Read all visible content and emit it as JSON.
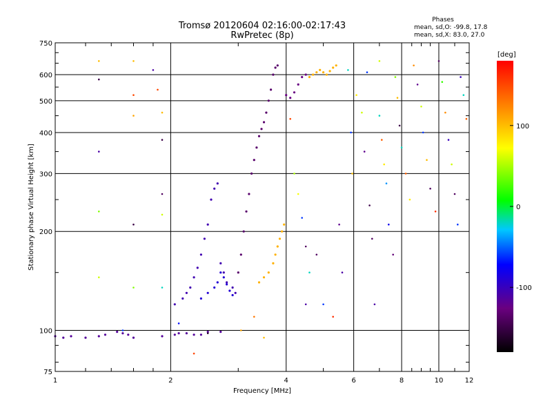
{
  "chart_data": {
    "type": "scatter",
    "title": "Tromsø 20120604 02:16:00-02:17:43",
    "subtitle": "RwPretec (8p)",
    "xlabel": "Frequency [MHz]",
    "ylabel": "Stationary phase Virtual Height [km]",
    "x_scale": "log",
    "y_scale": "log",
    "xlim": [
      1,
      12
    ],
    "ylim": [
      75,
      750
    ],
    "x_ticks": [
      "1",
      "2",
      "4",
      "6",
      "8",
      "10",
      "12"
    ],
    "y_ticks": [
      "75",
      "100",
      "200",
      "300",
      "400",
      "500",
      "600",
      "750"
    ],
    "grid": true,
    "phases": {
      "heading": "Phases",
      "line_o": "mean, sd,O: -99.8, 17.8",
      "line_x": "mean, sd,X:  83.0, 27.0"
    },
    "colorbar": {
      "label": "[deg]",
      "ticks": [
        "100",
        "0",
        "-100"
      ],
      "range": [
        -180,
        180
      ]
    },
    "series": [
      {
        "phase_deg": -115,
        "points": [
          [
            1.0,
            96
          ],
          [
            1.05,
            95
          ],
          [
            1.1,
            96
          ],
          [
            1.2,
            95
          ],
          [
            1.3,
            96
          ],
          [
            1.35,
            97
          ],
          [
            1.45,
            99
          ],
          [
            1.5,
            98
          ],
          [
            1.55,
            97
          ],
          [
            1.6,
            95
          ],
          [
            1.9,
            96
          ],
          [
            2.05,
            97
          ],
          [
            2.1,
            98
          ],
          [
            2.2,
            98
          ],
          [
            2.3,
            97
          ],
          [
            2.4,
            97
          ],
          [
            2.5,
            99
          ],
          [
            2.7,
            99
          ]
        ]
      },
      {
        "phase_deg": -105,
        "points": [
          [
            2.05,
            120
          ],
          [
            2.15,
            125
          ],
          [
            2.2,
            130
          ],
          [
            2.25,
            135
          ],
          [
            2.3,
            145
          ],
          [
            2.35,
            155
          ],
          [
            2.4,
            170
          ],
          [
            2.45,
            190
          ],
          [
            2.5,
            210
          ],
          [
            2.55,
            250
          ],
          [
            2.6,
            270
          ],
          [
            2.65,
            280
          ],
          [
            2.7,
            160
          ],
          [
            2.75,
            150
          ],
          [
            2.8,
            140
          ],
          [
            2.9,
            135
          ],
          [
            2.95,
            130
          ]
        ]
      },
      {
        "phase_deg": -90,
        "points": [
          [
            2.4,
            125
          ],
          [
            2.5,
            130
          ],
          [
            2.6,
            135
          ],
          [
            2.65,
            140
          ],
          [
            2.7,
            150
          ],
          [
            2.75,
            145
          ],
          [
            2.8,
            138
          ],
          [
            2.85,
            132
          ],
          [
            2.9,
            128
          ]
        ]
      },
      {
        "phase_deg": -135,
        "points": [
          [
            3.0,
            150
          ],
          [
            3.05,
            170
          ],
          [
            3.1,
            200
          ],
          [
            3.15,
            230
          ],
          [
            3.2,
            260
          ],
          [
            3.25,
            300
          ],
          [
            3.3,
            330
          ],
          [
            3.35,
            360
          ],
          [
            3.4,
            390
          ],
          [
            3.45,
            410
          ],
          [
            3.5,
            430
          ],
          [
            3.55,
            460
          ],
          [
            3.6,
            500
          ],
          [
            3.65,
            540
          ],
          [
            3.7,
            600
          ],
          [
            3.75,
            630
          ],
          [
            3.8,
            640
          ]
        ]
      },
      {
        "phase_deg": -125,
        "points": [
          [
            4.0,
            520
          ],
          [
            4.1,
            510
          ],
          [
            4.2,
            530
          ],
          [
            4.3,
            560
          ],
          [
            4.4,
            590
          ],
          [
            4.5,
            600
          ]
        ]
      },
      {
        "phase_deg": 105,
        "points": [
          [
            3.4,
            140
          ],
          [
            3.5,
            145
          ],
          [
            3.6,
            150
          ],
          [
            3.7,
            160
          ],
          [
            3.75,
            170
          ],
          [
            3.8,
            180
          ],
          [
            3.85,
            190
          ],
          [
            3.9,
            200
          ],
          [
            3.95,
            210
          ],
          [
            4.6,
            590
          ],
          [
            4.7,
            600
          ],
          [
            4.8,
            610
          ],
          [
            4.9,
            620
          ],
          [
            5.0,
            610
          ],
          [
            5.1,
            600
          ],
          [
            5.2,
            615
          ],
          [
            5.3,
            630
          ],
          [
            5.4,
            640
          ]
        ]
      }
    ],
    "scattered_points": [
      [
        1.3,
        660,
        100
      ],
      [
        1.3,
        580,
        -150
      ],
      [
        1.3,
        350,
        -110
      ],
      [
        1.3,
        230,
        40
      ],
      [
        1.3,
        145,
        60
      ],
      [
        1.5,
        100,
        -60
      ],
      [
        1.6,
        660,
        100
      ],
      [
        1.6,
        520,
        150
      ],
      [
        1.6,
        450,
        110
      ],
      [
        1.6,
        210,
        -150
      ],
      [
        1.6,
        135,
        40
      ],
      [
        1.8,
        620,
        -110
      ],
      [
        1.85,
        540,
        150
      ],
      [
        1.9,
        460,
        100
      ],
      [
        1.9,
        380,
        -150
      ],
      [
        1.9,
        260,
        -140
      ],
      [
        1.9,
        225,
        60
      ],
      [
        1.9,
        135,
        -20
      ],
      [
        2.1,
        105,
        -70
      ],
      [
        2.3,
        85,
        150
      ],
      [
        2.5,
        98,
        -160
      ],
      [
        3.05,
        100,
        110
      ],
      [
        3.3,
        110,
        130
      ],
      [
        3.5,
        95,
        100
      ],
      [
        4.1,
        440,
        150
      ],
      [
        4.2,
        300,
        50
      ],
      [
        4.3,
        260,
        70
      ],
      [
        4.4,
        220,
        -60
      ],
      [
        4.5,
        180,
        -140
      ],
      [
        4.6,
        150,
        -20
      ],
      [
        4.5,
        120,
        -110
      ],
      [
        4.8,
        170,
        -140
      ],
      [
        5.0,
        120,
        -60
      ],
      [
        5.3,
        110,
        160
      ],
      [
        5.5,
        210,
        -120
      ],
      [
        5.6,
        150,
        -110
      ],
      [
        5.8,
        620,
        -20
      ],
      [
        5.9,
        400,
        -60
      ],
      [
        5.95,
        300,
        100
      ],
      [
        6.1,
        520,
        80
      ],
      [
        6.3,
        460,
        60
      ],
      [
        6.4,
        350,
        -120
      ],
      [
        6.5,
        610,
        -60
      ],
      [
        6.6,
        240,
        -150
      ],
      [
        6.7,
        190,
        -140
      ],
      [
        6.8,
        120,
        -110
      ],
      [
        7.0,
        660,
        60
      ],
      [
        7.0,
        450,
        -20
      ],
      [
        7.1,
        380,
        140
      ],
      [
        7.2,
        320,
        80
      ],
      [
        7.3,
        280,
        -40
      ],
      [
        7.4,
        210,
        -80
      ],
      [
        7.6,
        170,
        -130
      ],
      [
        7.7,
        590,
        40
      ],
      [
        7.8,
        510,
        100
      ],
      [
        7.9,
        420,
        -150
      ],
      [
        8.0,
        360,
        -20
      ],
      [
        8.2,
        300,
        140
      ],
      [
        8.4,
        250,
        80
      ],
      [
        8.6,
        640,
        120
      ],
      [
        8.8,
        560,
        -120
      ],
      [
        9.0,
        480,
        60
      ],
      [
        9.1,
        400,
        -60
      ],
      [
        9.3,
        330,
        100
      ],
      [
        9.5,
        270,
        -140
      ],
      [
        9.8,
        230,
        160
      ],
      [
        10.0,
        660,
        -140
      ],
      [
        10.2,
        570,
        20
      ],
      [
        10.4,
        460,
        120
      ],
      [
        10.6,
        380,
        -100
      ],
      [
        10.8,
        320,
        60
      ],
      [
        11.0,
        260,
        -140
      ],
      [
        11.2,
        210,
        -60
      ],
      [
        11.4,
        590,
        -100
      ],
      [
        11.6,
        520,
        -20
      ],
      [
        11.8,
        440,
        140
      ]
    ]
  }
}
